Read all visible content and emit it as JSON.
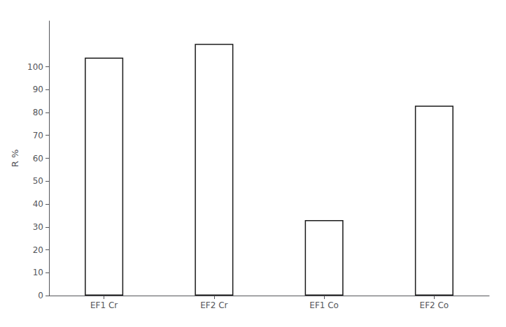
{
  "chart_data": {
    "type": "bar",
    "categories": [
      "EF1 Cr",
      "EF2 Cr",
      "EF1 Co",
      "EF2 Co"
    ],
    "values": [
      104,
      110,
      33,
      83
    ],
    "color": "#ffffff",
    "ylabel": "R %",
    "ylim": [
      0,
      120
    ],
    "yticks": [
      0,
      10,
      20,
      30,
      40,
      50,
      60,
      70,
      80,
      90,
      100
    ],
    "grid": false
  }
}
